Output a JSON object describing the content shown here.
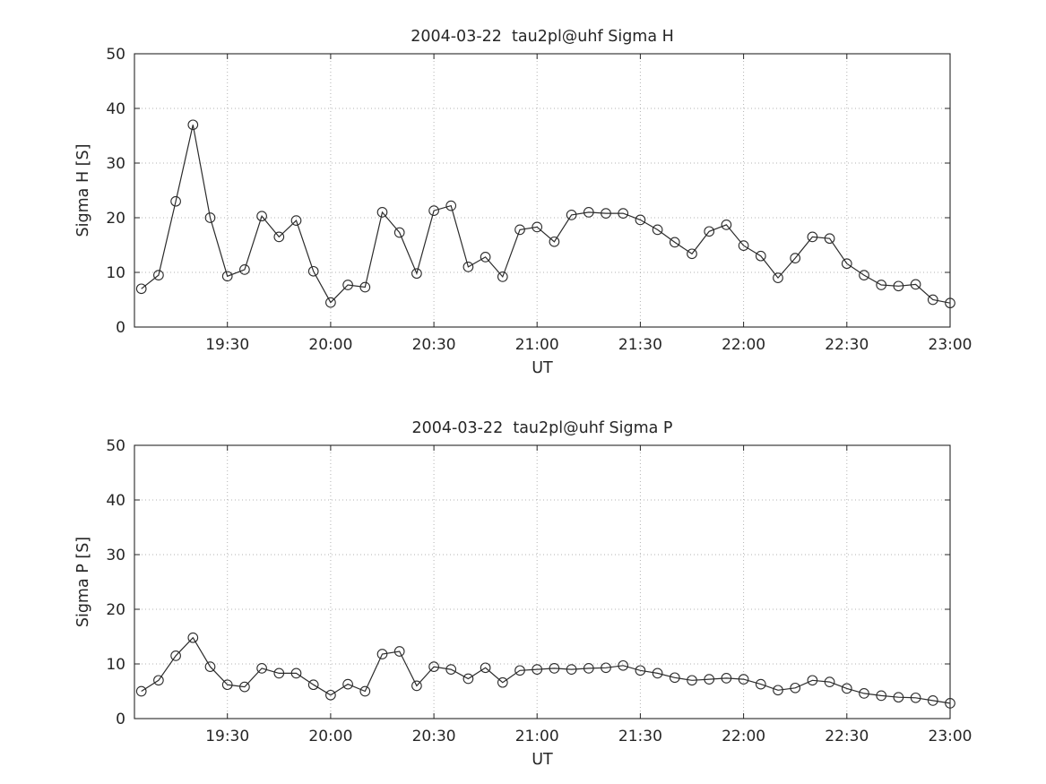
{
  "figure": {
    "background": "#ffffff",
    "text_color": "#262626",
    "line_color": "#2b2b2b",
    "grid_color": "#9a9a9a"
  },
  "chart_data": [
    {
      "type": "line",
      "title": "2004-03-22  tau2pl@uhf Sigma H",
      "xlabel": "UT",
      "ylabel": "Sigma H [S]",
      "ylim": [
        0,
        50
      ],
      "yticks": [
        0,
        10,
        20,
        30,
        40,
        50
      ],
      "xlim": [
        "19:03",
        "23:00"
      ],
      "xticks": [
        "19:30",
        "20:00",
        "20:30",
        "21:00",
        "21:30",
        "22:00",
        "22:30",
        "23:00"
      ],
      "marker": "circle",
      "grid": true,
      "legend": "none",
      "x": [
        "19:05",
        "19:10",
        "19:15",
        "19:20",
        "19:25",
        "19:30",
        "19:35",
        "19:40",
        "19:45",
        "19:50",
        "19:55",
        "20:00",
        "20:05",
        "20:10",
        "20:15",
        "20:20",
        "20:25",
        "20:30",
        "20:35",
        "20:40",
        "20:45",
        "20:50",
        "20:55",
        "21:00",
        "21:05",
        "21:10",
        "21:15",
        "21:20",
        "21:25",
        "21:30",
        "21:35",
        "21:40",
        "21:45",
        "21:50",
        "21:55",
        "22:00",
        "22:05",
        "22:10",
        "22:15",
        "22:20",
        "22:25",
        "22:30",
        "22:35",
        "22:40",
        "22:45",
        "22:50",
        "22:55",
        "23:00"
      ],
      "values": [
        7,
        9.5,
        23,
        37,
        20,
        9.3,
        10.5,
        20.3,
        16.5,
        19.5,
        10.2,
        4.5,
        7.7,
        7.3,
        21,
        17.3,
        9.8,
        21.3,
        22.2,
        11,
        12.8,
        9.2,
        17.8,
        18.3,
        15.6,
        20.5,
        21,
        20.8,
        20.8,
        19.6,
        17.8,
        15.5,
        13.4,
        17.5,
        18.7,
        14.9,
        13,
        9,
        12.6,
        16.5,
        16.2,
        11.6,
        9.5,
        7.7,
        7.5,
        7.8,
        5,
        4.4
      ]
    },
    {
      "type": "line",
      "title": "2004-03-22  tau2pl@uhf Sigma P",
      "xlabel": "UT",
      "ylabel": "Sigma P [S]",
      "ylim": [
        0,
        50
      ],
      "yticks": [
        0,
        10,
        20,
        30,
        40,
        50
      ],
      "xlim": [
        "19:03",
        "23:00"
      ],
      "xticks": [
        "19:30",
        "20:00",
        "20:30",
        "21:00",
        "21:30",
        "22:00",
        "22:30",
        "23:00"
      ],
      "marker": "circle",
      "grid": true,
      "legend": "none",
      "x": [
        "19:05",
        "19:10",
        "19:15",
        "19:20",
        "19:25",
        "19:30",
        "19:35",
        "19:40",
        "19:45",
        "19:50",
        "19:55",
        "20:00",
        "20:05",
        "20:10",
        "20:15",
        "20:20",
        "20:25",
        "20:30",
        "20:35",
        "20:40",
        "20:45",
        "20:50",
        "20:55",
        "21:00",
        "21:05",
        "21:10",
        "21:15",
        "21:20",
        "21:25",
        "21:30",
        "21:35",
        "21:40",
        "21:45",
        "21:50",
        "21:55",
        "22:00",
        "22:05",
        "22:10",
        "22:15",
        "22:20",
        "22:25",
        "22:30",
        "22:35",
        "22:40",
        "22:45",
        "22:50",
        "22:55",
        "23:00"
      ],
      "values": [
        5,
        7,
        11.5,
        14.8,
        9.5,
        6.2,
        5.8,
        9.2,
        8.3,
        8.3,
        6.2,
        4.3,
        6.3,
        5,
        11.8,
        12.3,
        6,
        9.5,
        9,
        7.3,
        9.3,
        6.6,
        8.8,
        9,
        9.2,
        9,
        9.2,
        9.3,
        9.7,
        8.8,
        8.3,
        7.5,
        7,
        7.2,
        7.4,
        7.2,
        6.3,
        5.2,
        5.6,
        7,
        6.7,
        5.5,
        4.6,
        4.2,
        3.9,
        3.8,
        3.3,
        2.8
      ]
    }
  ]
}
